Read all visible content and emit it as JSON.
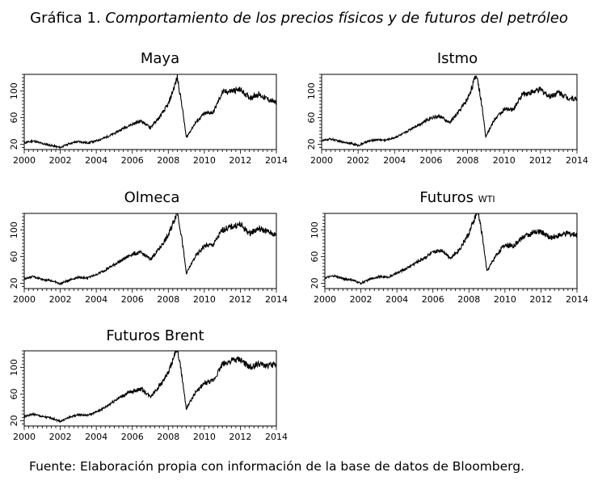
{
  "figure": {
    "number": "Gráfica 1.",
    "title": "Comportamiento de los precios físicos y de futuros del petróleo",
    "source": "Fuente: Elaboración propia con información de la base de datos de Bloomberg."
  },
  "chart_data": [
    {
      "type": "line",
      "title": "Maya",
      "xlim": [
        2000,
        2014
      ],
      "ylim": [
        12,
        125
      ],
      "x_ticks": [
        "2000",
        "2002",
        "2004",
        "2006",
        "2008",
        "2010",
        "2012",
        "2014"
      ],
      "y_ticks": [
        "20",
        "60",
        "100"
      ],
      "series": [
        {
          "x": [
            2000,
            2000.5,
            2001,
            2001.5,
            2002,
            2002.5,
            2003,
            2003.5,
            2004,
            2004.5,
            2005,
            2005.5,
            2006,
            2006.5,
            2007,
            2007.5,
            2008,
            2008.5,
            2008.75,
            2009,
            2009.5,
            2010,
            2010.5,
            2011,
            2011.5,
            2012,
            2012.5,
            2013,
            2013.5,
            2014
          ],
          "y": [
            22,
            25,
            21,
            18,
            15,
            21,
            24,
            22,
            25,
            30,
            36,
            44,
            50,
            55,
            45,
            60,
            80,
            120,
            80,
            30,
            52,
            66,
            68,
            98,
            100,
            102,
            90,
            95,
            88,
            82
          ]
        }
      ]
    },
    {
      "type": "line",
      "title": "Istmo",
      "xlim": [
        2000,
        2014
      ],
      "ylim": [
        12,
        125
      ],
      "x_ticks": [
        "2000",
        "2002",
        "2004",
        "2006",
        "2008",
        "2010",
        "2012",
        "2014"
      ],
      "y_ticks": [
        "20",
        "60",
        "100"
      ],
      "series": [
        {
          "x": [
            2000,
            2000.5,
            2001,
            2001.5,
            2002,
            2002.5,
            2003,
            2003.5,
            2004,
            2004.5,
            2005,
            2005.5,
            2006,
            2006.5,
            2007,
            2007.5,
            2008,
            2008.5,
            2008.75,
            2009,
            2009.5,
            2010,
            2010.5,
            2011,
            2011.5,
            2012,
            2012.5,
            2013,
            2013.5,
            2014
          ],
          "y": [
            25,
            28,
            24,
            22,
            18,
            24,
            27,
            26,
            30,
            36,
            45,
            52,
            60,
            62,
            52,
            68,
            88,
            125,
            85,
            32,
            58,
            72,
            72,
            95,
            98,
            102,
            92,
            98,
            90,
            88
          ]
        }
      ]
    },
    {
      "type": "line",
      "title": "Olmeca",
      "xlim": [
        2000,
        2014
      ],
      "ylim": [
        12,
        125
      ],
      "x_ticks": [
        "2000",
        "2002",
        "2004",
        "2006",
        "2008",
        "2010",
        "2012",
        "2014"
      ],
      "y_ticks": [
        "20",
        "60",
        "100"
      ],
      "series": [
        {
          "x": [
            2000,
            2000.5,
            2001,
            2001.5,
            2002,
            2002.5,
            2003,
            2003.5,
            2004,
            2004.5,
            2005,
            2005.5,
            2006,
            2006.5,
            2007,
            2007.5,
            2008,
            2008.5,
            2008.75,
            2009,
            2009.5,
            2010,
            2010.5,
            2011,
            2011.5,
            2012,
            2012.5,
            2013,
            2013.5,
            2014
          ],
          "y": [
            27,
            30,
            26,
            24,
            19,
            25,
            29,
            28,
            33,
            40,
            48,
            56,
            64,
            66,
            56,
            72,
            92,
            128,
            88,
            35,
            60,
            76,
            78,
            100,
            105,
            108,
            95,
            102,
            98,
            92
          ]
        }
      ]
    },
    {
      "type": "line",
      "title": "Futuros",
      "title_sub": "WTI",
      "xlim": [
        2000,
        2014
      ],
      "ylim": [
        12,
        125
      ],
      "x_ticks": [
        "2000",
        "2002",
        "2004",
        "2006",
        "2008",
        "2010",
        "2012",
        "2014"
      ],
      "y_ticks": [
        "20",
        "60",
        "100"
      ],
      "series": [
        {
          "x": [
            2000,
            2000.5,
            2001,
            2001.5,
            2002,
            2002.5,
            2003,
            2003.5,
            2004,
            2004.5,
            2005,
            2005.5,
            2006,
            2006.5,
            2007,
            2007.5,
            2008,
            2008.5,
            2008.75,
            2009,
            2009.5,
            2010,
            2010.5,
            2011,
            2011.5,
            2012,
            2012.5,
            2013,
            2013.5,
            2014
          ],
          "y": [
            28,
            31,
            27,
            25,
            20,
            26,
            30,
            29,
            35,
            42,
            50,
            58,
            66,
            70,
            58,
            72,
            95,
            130,
            90,
            38,
            62,
            78,
            76,
            90,
            95,
            98,
            88,
            92,
            95,
            92
          ]
        }
      ]
    },
    {
      "type": "line",
      "title": "Futuros Brent",
      "xlim": [
        2000,
        2014
      ],
      "ylim": [
        12,
        125
      ],
      "x_ticks": [
        "2000",
        "2002",
        "2004",
        "2006",
        "2008",
        "2010",
        "2012",
        "2014"
      ],
      "y_ticks": [
        "20",
        "60",
        "100"
      ],
      "series": [
        {
          "x": [
            2000,
            2000.5,
            2001,
            2001.5,
            2002,
            2002.5,
            2003,
            2003.5,
            2004,
            2004.5,
            2005,
            2005.5,
            2006,
            2006.5,
            2007,
            2007.5,
            2008,
            2008.5,
            2008.75,
            2009,
            2009.5,
            2010,
            2010.5,
            2011,
            2011.5,
            2012,
            2012.5,
            2013,
            2013.5,
            2014
          ],
          "y": [
            26,
            30,
            26,
            24,
            19,
            25,
            29,
            28,
            33,
            40,
            50,
            58,
            64,
            68,
            56,
            72,
            92,
            130,
            88,
            38,
            62,
            76,
            80,
            105,
            110,
            112,
            100,
            105,
            102,
            105
          ]
        }
      ]
    }
  ]
}
